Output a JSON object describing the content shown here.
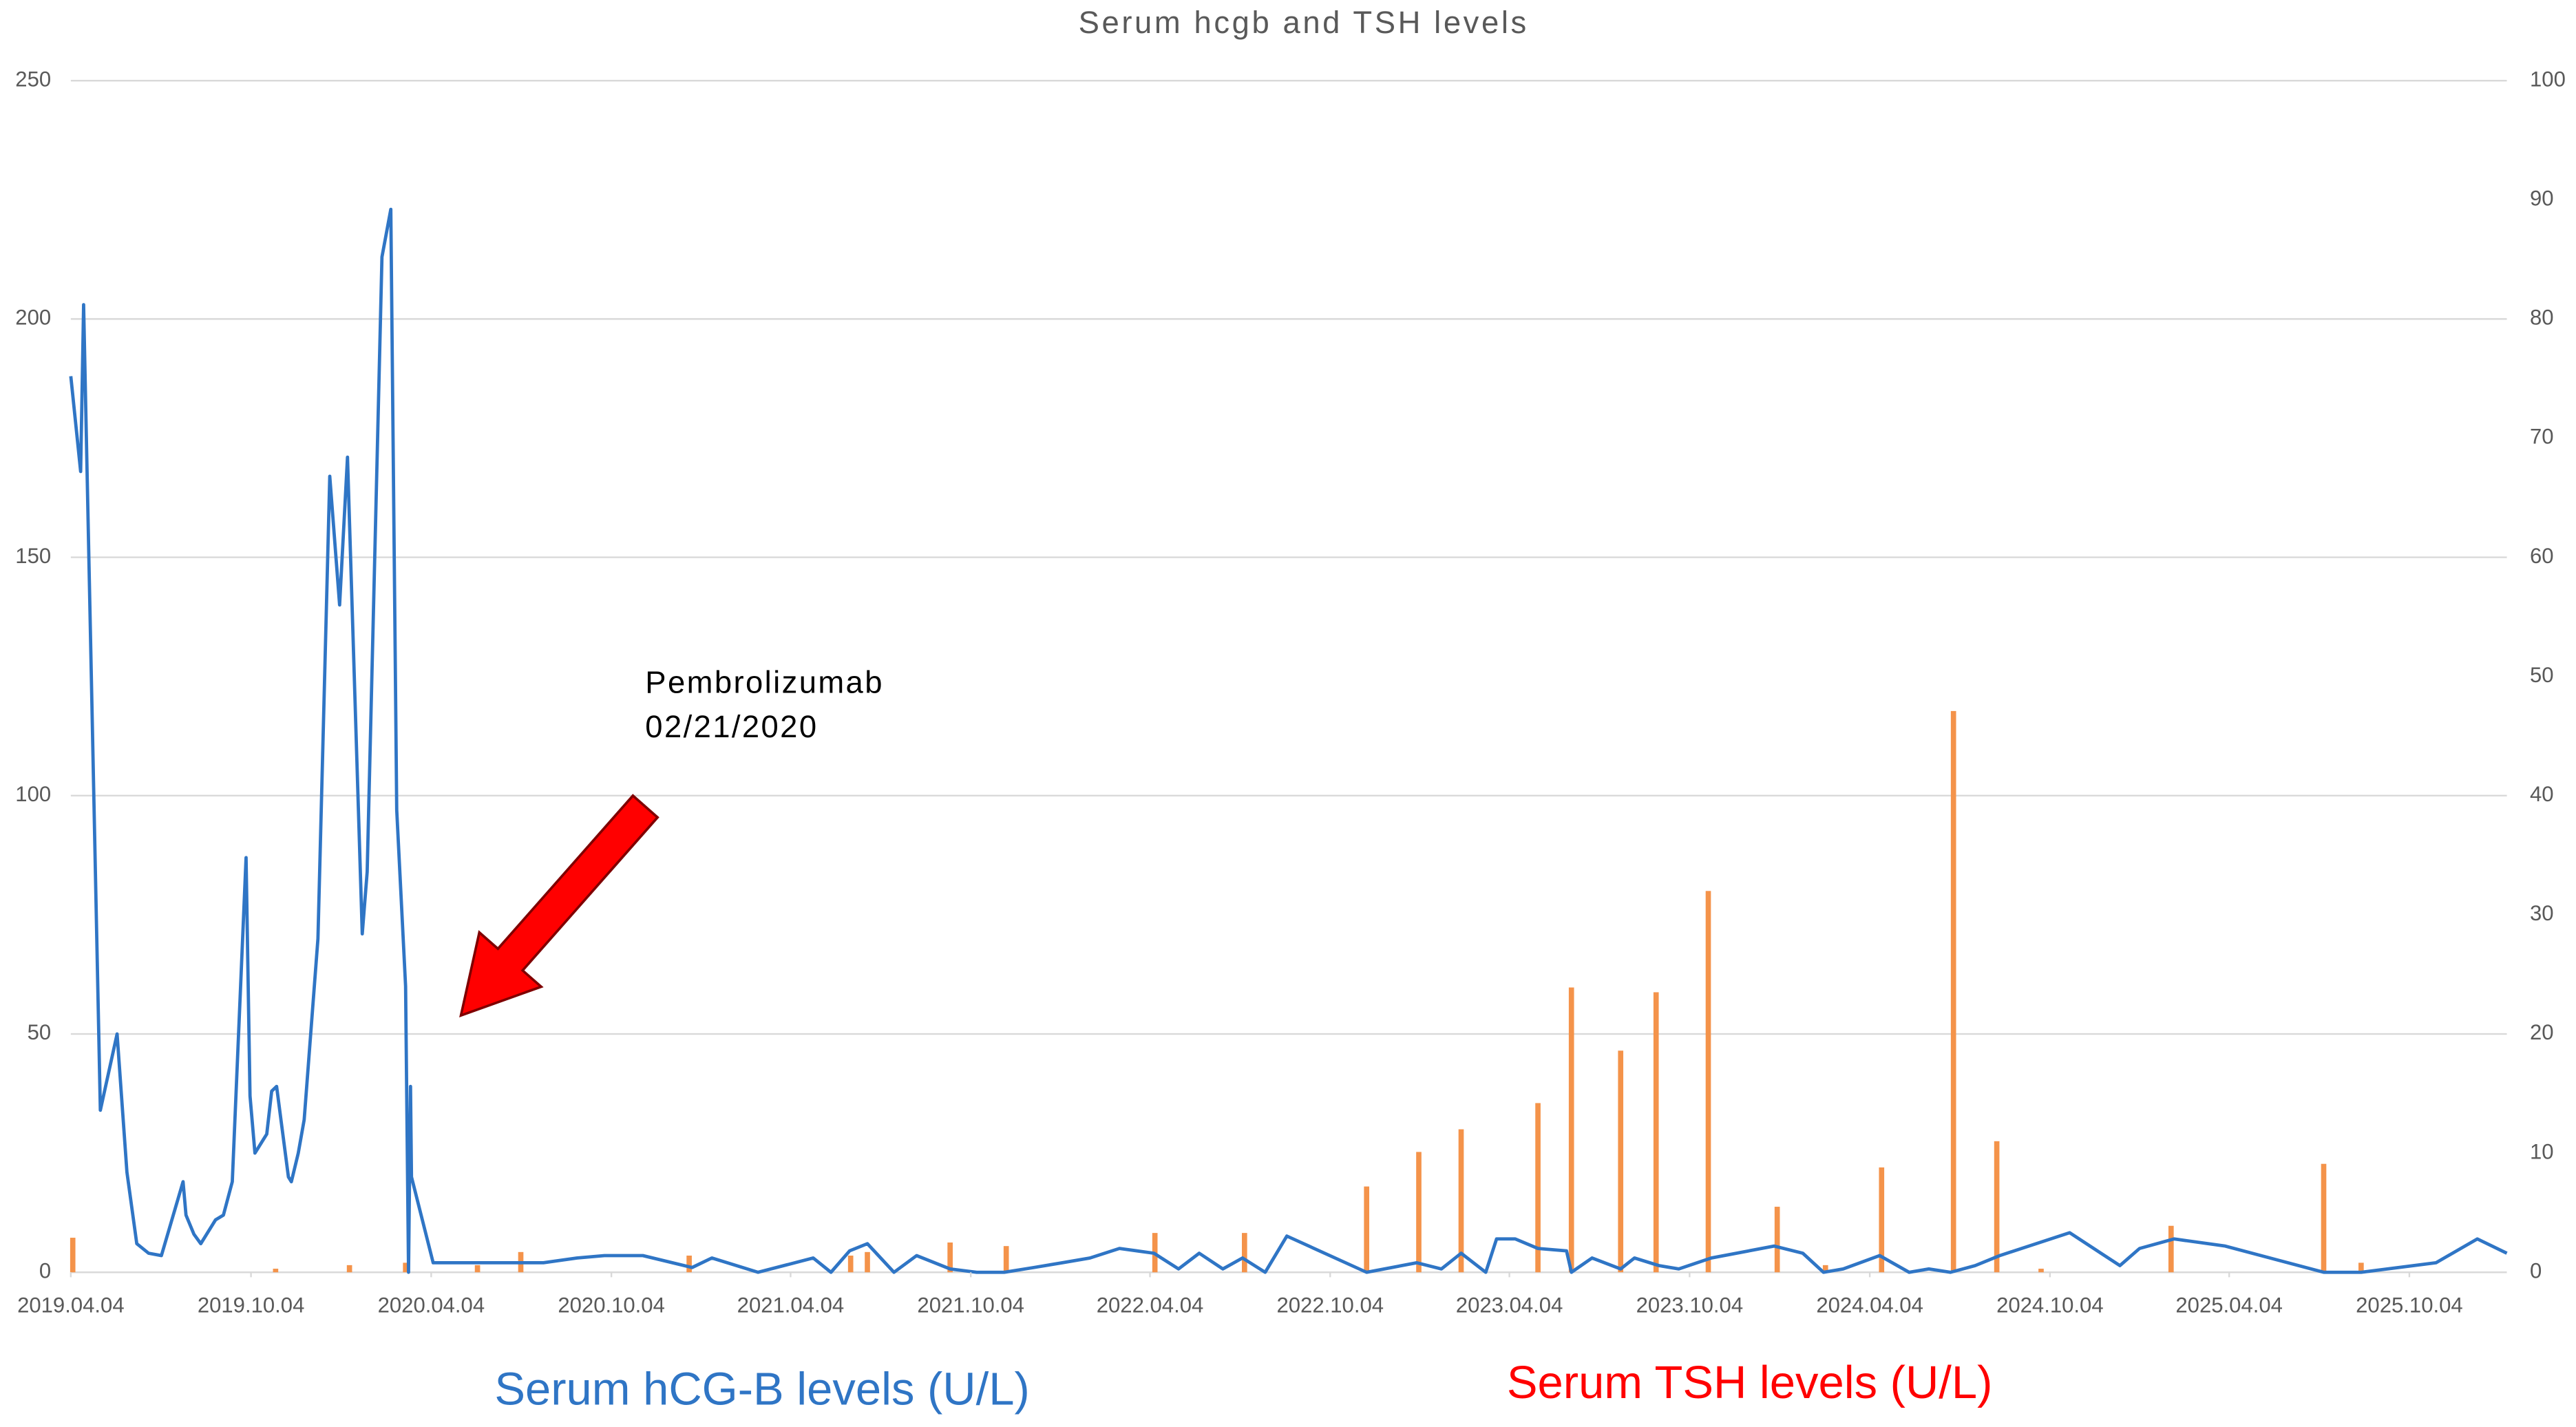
{
  "chart_data": {
    "type": "line-bar",
    "title": "Serum hcgb and TSH levels",
    "annotation": [
      "Pembrolizumab",
      "02/21/2020"
    ],
    "xlim": [
      "2019.04.04",
      "2026.01.11"
    ],
    "xticks": [
      "2019.04.04",
      "2019.10.04",
      "2020.04.04",
      "2020.10.04",
      "2021.04.04",
      "2021.10.04",
      "2022.04.04",
      "2022.10.04",
      "2023.04.04",
      "2023.10.04",
      "2024.04.04",
      "2024.10.04",
      "2025.04.04",
      "2025.10.04"
    ],
    "ylim": [
      0,
      250
    ],
    "yticks": [
      0,
      50,
      100,
      150,
      200,
      250
    ],
    "y2lim": [
      0,
      100
    ],
    "y2ticks": [
      0,
      10,
      20,
      30,
      40,
      50,
      60,
      70,
      80,
      90,
      100
    ],
    "grid": true,
    "series": [
      {
        "name": "Serum hCG-B levels (U/L)",
        "type": "line",
        "color": "#2f75c5",
        "x": [
          "2019.04.04",
          "2019.04.14",
          "2019.04.17",
          "2019.05.04",
          "2019.05.21",
          "2019.05.31",
          "2019.06.10",
          "2019.06.22",
          "2019.07.05",
          "2019.07.27",
          "2019.07.30",
          "2019.08.07",
          "2019.08.14",
          "2019.08.29",
          "2019.09.06",
          "2019.09.15",
          "2019.09.29",
          "2019.10.03",
          "2019.10.08",
          "2019.10.20",
          "2019.10.25",
          "2019.10.30",
          "2019.11.11",
          "2019.11.14",
          "2019.11.21",
          "2019.11.27",
          "2019.12.11",
          "2019.12.23",
          "2020.01.02",
          "2020.01.10",
          "2020.01.25",
          "2020.01.30",
          "2020.02.14",
          "2020.02.23",
          "2020.02.29",
          "2020.03.09",
          "2020.03.12",
          "2020.03.14",
          "2020.03.15",
          "2020.04.06",
          "2020.07.27",
          "2020.08.30",
          "2020.09.27",
          "2020.11.05",
          "2020.12.25",
          "2021.01.14",
          "2021.03.02",
          "2021.04.27",
          "2021.05.15",
          "2021.06.03",
          "2021.06.21",
          "2021.07.18",
          "2021.08.10",
          "2021.09.13",
          "2021.10.10",
          "2021.11.07",
          "2021.12.07",
          "2022.01.05",
          "2022.02.02",
          "2022.03.04",
          "2022.04.08",
          "2022.05.03",
          "2022.05.24",
          "2022.06.17",
          "2022.07.07",
          "2022.07.30",
          "2022.08.21",
          "2022.11.10",
          "2022.12.31",
          "2023.01.25",
          "2023.02.14",
          "2023.03.11",
          "2023.03.22",
          "2023.04.10",
          "2023.05.03",
          "2023.06.01",
          "2023.06.06",
          "2023.06.27",
          "2023.07.26",
          "2023.08.09",
          "2023.09.03",
          "2023.09.23",
          "2023.10.26",
          "2023.12.29",
          "2024.01.27",
          "2024.02.17",
          "2024.03.08",
          "2024.04.14",
          "2024.05.14",
          "2024.06.03",
          "2024.06.25",
          "2024.07.20",
          "2024.08.14",
          "2024.10.24",
          "2024.12.14",
          "2025.01.03",
          "2025.02.07",
          "2025.03.31",
          "2025.07.09",
          "2025.08.16",
          "2025.10.31",
          "2025.12.12",
          "2026.01.11"
        ],
        "values": [
          188,
          168,
          203,
          34,
          50,
          21,
          6,
          4,
          3.5,
          19,
          12,
          8,
          6,
          11,
          12,
          19,
          87,
          37,
          25,
          29,
          38,
          39,
          20,
          19,
          25,
          32,
          70,
          167,
          140,
          171,
          71,
          84,
          213,
          223,
          97,
          60,
          0,
          39,
          20,
          2,
          2,
          3,
          3.5,
          3.5,
          1,
          3,
          0,
          3,
          0,
          4.5,
          6,
          0,
          3.5,
          0.7,
          0,
          0,
          1,
          2,
          3,
          5,
          4,
          0.7,
          4,
          0.7,
          3,
          0,
          7.6,
          0,
          2,
          0.7,
          4,
          0,
          7,
          7,
          5,
          4.5,
          0,
          3,
          0.7,
          3,
          1.4,
          0.7,
          3,
          5.5,
          4,
          0,
          0.7,
          3.5,
          0,
          0.7,
          0,
          1.4,
          3.5,
          8.3,
          1.4,
          5,
          7,
          5.5,
          0,
          0,
          2,
          7,
          4
        ]
      },
      {
        "name": "Serum TSH levels (U/L)",
        "type": "bar",
        "axis": "y2",
        "color": "#f4934a",
        "x": [
          "2019.04.06",
          "2019.10.29",
          "2020.01.12",
          "2020.03.09",
          "2020.05.21",
          "2020.07.04",
          "2020.12.22",
          "2021.06.04",
          "2021.06.21",
          "2021.09.13",
          "2021.11.09",
          "2022.04.09",
          "2022.07.09",
          "2022.11.10",
          "2023.01.02",
          "2023.02.14",
          "2023.05.03",
          "2023.06.06",
          "2023.07.26",
          "2023.08.31",
          "2023.10.23",
          "2024.01.01",
          "2024.02.19",
          "2024.04.16",
          "2024.06.28",
          "2024.08.11",
          "2024.09.25",
          "2025.02.04",
          "2025.07.09",
          "2025.08.16"
        ],
        "values": [
          2.9,
          0.3,
          0.6,
          0.8,
          0.6,
          1.7,
          1.4,
          1.4,
          1.7,
          2.5,
          2.2,
          3.3,
          3.3,
          7.2,
          10.1,
          12.0,
          14.2,
          23.9,
          18.6,
          23.5,
          32.0,
          5.5,
          0.6,
          8.8,
          47.1,
          11.0,
          0.3,
          3.9,
          9.1,
          0.8
        ]
      }
    ]
  }
}
